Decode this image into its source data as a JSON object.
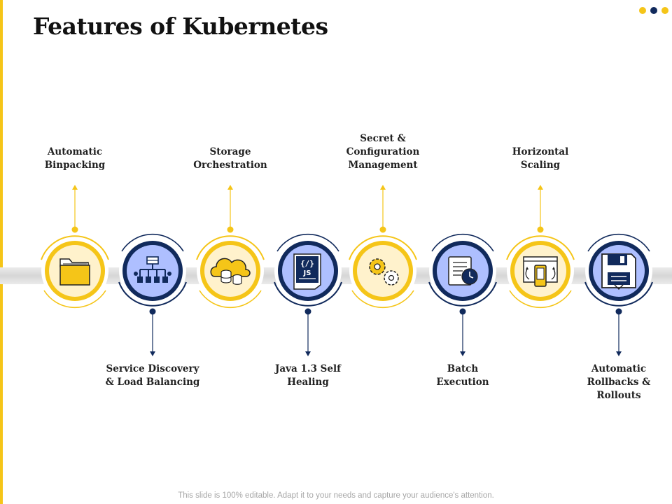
{
  "slide": {
    "title": "Features of Kubernetes",
    "footer": "This slide is 100% editable. Adapt it to your needs and capture your audience's attention."
  },
  "theme": {
    "accent_yellow": "#f5c518",
    "accent_navy": "#112a5c",
    "light_yellow": "#fff2cc",
    "light_blue": "#aebfff"
  },
  "features": [
    {
      "label": "Automatic\nBinpacking",
      "icon": "folder-icon",
      "variant": "yellow",
      "label_position": "top"
    },
    {
      "label": "Service Discovery\n& Load Balancing",
      "icon": "network-hierarchy-icon",
      "variant": "navy",
      "label_position": "bottom"
    },
    {
      "label": "Storage\nOrchestration",
      "icon": "cloud-storage-icon",
      "variant": "yellow",
      "label_position": "top"
    },
    {
      "label": "Java 1.3 Self\nHealing",
      "icon": "java-script-document-icon",
      "variant": "navy",
      "label_position": "bottom"
    },
    {
      "label": "Secret &\nConfiguration\nManagement",
      "icon": "gears-icon",
      "variant": "yellow",
      "label_position": "top"
    },
    {
      "label": "Batch\nExecution",
      "icon": "clock-document-icon",
      "variant": "navy",
      "label_position": "bottom"
    },
    {
      "label": "Horizontal\nScaling",
      "icon": "responsive-devices-icon",
      "variant": "yellow",
      "label_position": "top"
    },
    {
      "label": "Automatic\nRollbacks &\nRollouts",
      "icon": "floppy-disk-icon",
      "variant": "navy",
      "label_position": "bottom"
    }
  ]
}
